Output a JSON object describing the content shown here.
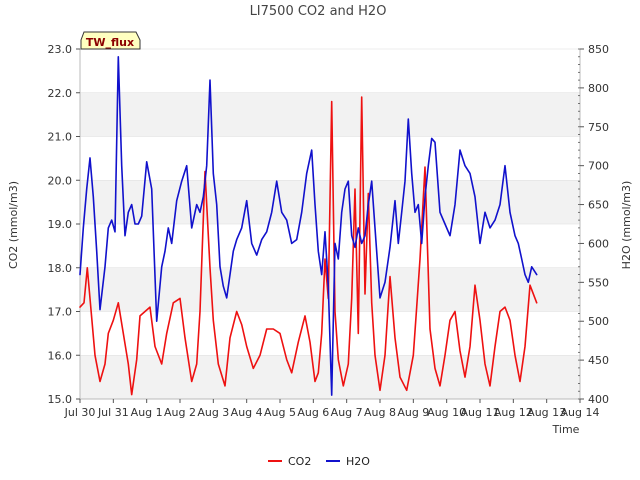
{
  "chart_data": {
    "type": "line",
    "title": "LI7500 CO2 and H2O",
    "badge": "TW_flux",
    "xlabel": "Time",
    "ylabel_left": "CO2 (mmol/m3)",
    "ylabel_right": "H2O (mmol/m3)",
    "x_ticks": [
      "Jul 30",
      "Jul 31",
      "Aug 1",
      "Aug 2",
      "Aug 3",
      "Aug 4",
      "Aug 5",
      "Aug 6",
      "Aug 7",
      "Aug 8",
      "Aug 9",
      "Aug 10",
      "Aug 11",
      "Aug 12",
      "Aug 13",
      "Aug 14"
    ],
    "y_left_ticks": [
      "15.0",
      "16.0",
      "17.0",
      "18.0",
      "19.0",
      "20.0",
      "21.0",
      "22.0",
      "23.0"
    ],
    "y_right_ticks": [
      "400",
      "450",
      "500",
      "550",
      "600",
      "650",
      "700",
      "750",
      "800",
      "850"
    ],
    "ylim_left": [
      15.0,
      23.0
    ],
    "ylim_right": [
      400,
      850
    ],
    "xlim_days": [
      0,
      15
    ],
    "grid": "horizontal bands",
    "legend_position": "bottom-center",
    "series": [
      {
        "name": "CO2",
        "axis": "left",
        "color": "#ee1111",
        "x": [
          0.0,
          0.12,
          0.22,
          0.3,
          0.45,
          0.6,
          0.75,
          0.85,
          1.0,
          1.15,
          1.3,
          1.45,
          1.55,
          1.7,
          1.8,
          1.95,
          2.1,
          2.25,
          2.45,
          2.6,
          2.8,
          3.0,
          3.15,
          3.35,
          3.5,
          3.6,
          3.75,
          3.9,
          4.0,
          4.15,
          4.35,
          4.5,
          4.7,
          4.85,
          5.0,
          5.2,
          5.4,
          5.6,
          5.8,
          6.0,
          6.2,
          6.35,
          6.55,
          6.75,
          6.9,
          7.05,
          7.15,
          7.25,
          7.35,
          7.45,
          7.55,
          7.65,
          7.75,
          7.9,
          8.05,
          8.15,
          8.25,
          8.35,
          8.45,
          8.55,
          8.65,
          8.75,
          8.85,
          9.0,
          9.15,
          9.3,
          9.45,
          9.6,
          9.8,
          10.0,
          10.1,
          10.2,
          10.35,
          10.5,
          10.65,
          10.8,
          10.95,
          11.1,
          11.25,
          11.4,
          11.55,
          11.7,
          11.85,
          12.0,
          12.15,
          12.3,
          12.45,
          12.6,
          12.75,
          12.9,
          13.05,
          13.2,
          13.35,
          13.5,
          13.7
        ],
        "values": [
          17.1,
          17.2,
          18.0,
          17.3,
          16.0,
          15.4,
          15.8,
          16.5,
          16.8,
          17.2,
          16.5,
          15.8,
          15.1,
          15.9,
          16.9,
          17.0,
          17.1,
          16.2,
          15.8,
          16.5,
          17.2,
          17.3,
          16.4,
          15.4,
          15.8,
          17.0,
          20.2,
          18.0,
          16.8,
          15.8,
          15.3,
          16.4,
          17.0,
          16.7,
          16.2,
          15.7,
          16.0,
          16.6,
          16.6,
          16.5,
          15.9,
          15.6,
          16.3,
          16.9,
          16.3,
          15.4,
          15.6,
          16.5,
          18.2,
          17.3,
          21.8,
          17.0,
          15.9,
          15.3,
          15.8,
          17.3,
          19.8,
          16.5,
          21.9,
          17.4,
          19.7,
          17.2,
          16.0,
          15.2,
          16.0,
          17.8,
          16.4,
          15.5,
          15.2,
          16.0,
          17.1,
          18.2,
          20.3,
          16.6,
          15.7,
          15.3,
          16.0,
          16.8,
          17.0,
          16.1,
          15.5,
          16.2,
          17.6,
          16.8,
          15.8,
          15.3,
          16.2,
          17.0,
          17.1,
          16.8,
          16.0,
          15.4,
          16.2,
          17.6,
          17.2
        ]
      },
      {
        "name": "H2O",
        "axis": "right",
        "color": "#1111cc",
        "x": [
          0.0,
          0.1,
          0.2,
          0.3,
          0.4,
          0.5,
          0.6,
          0.75,
          0.85,
          0.95,
          1.05,
          1.15,
          1.25,
          1.35,
          1.45,
          1.55,
          1.65,
          1.75,
          1.85,
          2.0,
          2.15,
          2.3,
          2.45,
          2.55,
          2.65,
          2.75,
          2.9,
          3.05,
          3.2,
          3.35,
          3.5,
          3.6,
          3.7,
          3.8,
          3.9,
          4.0,
          4.1,
          4.2,
          4.3,
          4.4,
          4.5,
          4.6,
          4.7,
          4.85,
          5.0,
          5.15,
          5.3,
          5.45,
          5.6,
          5.75,
          5.9,
          6.05,
          6.2,
          6.35,
          6.5,
          6.65,
          6.8,
          6.95,
          7.05,
          7.15,
          7.25,
          7.35,
          7.45,
          7.55,
          7.65,
          7.75,
          7.85,
          7.95,
          8.05,
          8.15,
          8.25,
          8.35,
          8.45,
          8.55,
          8.65,
          8.75,
          8.85,
          9.0,
          9.15,
          9.3,
          9.45,
          9.55,
          9.65,
          9.75,
          9.85,
          9.95,
          10.05,
          10.15,
          10.25,
          10.35,
          10.45,
          10.55,
          10.65,
          10.8,
          10.95,
          11.1,
          11.25,
          11.4,
          11.55,
          11.7,
          11.85,
          12.0,
          12.15,
          12.3,
          12.45,
          12.6,
          12.75,
          12.9,
          13.05,
          13.15,
          13.25,
          13.35,
          13.45,
          13.55,
          13.7
        ],
        "values": [
          560,
          620,
          670,
          710,
          660,
          590,
          515,
          570,
          620,
          630,
          615,
          840,
          700,
          610,
          640,
          650,
          625,
          625,
          635,
          705,
          670,
          500,
          570,
          590,
          620,
          600,
          655,
          680,
          700,
          620,
          650,
          640,
          660,
          700,
          810,
          690,
          650,
          570,
          545,
          530,
          560,
          590,
          605,
          620,
          655,
          600,
          585,
          605,
          615,
          640,
          680,
          640,
          630,
          600,
          605,
          640,
          690,
          720,
          650,
          590,
          560,
          615,
          545,
          405,
          600,
          580,
          640,
          670,
          680,
          610,
          595,
          620,
          600,
          610,
          650,
          680,
          620,
          530,
          550,
          595,
          655,
          600,
          640,
          680,
          760,
          690,
          640,
          650,
          600,
          660,
          700,
          735,
          730,
          640,
          625,
          610,
          650,
          720,
          700,
          690,
          660,
          600,
          640,
          620,
          630,
          650,
          700,
          640,
          610,
          600,
          580,
          560,
          550,
          570,
          560
        ]
      }
    ]
  }
}
